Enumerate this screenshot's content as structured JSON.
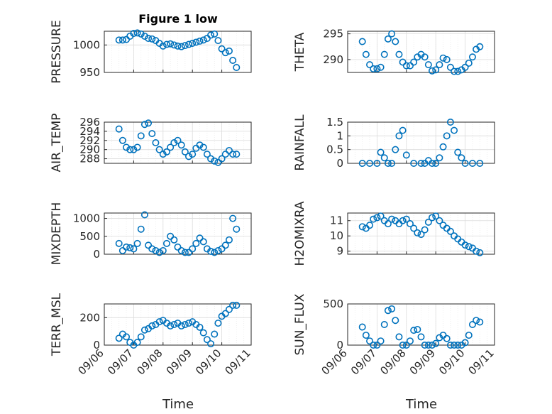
{
  "figure": {
    "title": "Figure 1 low",
    "xlabel": "Time"
  },
  "colors": {
    "marker": "#0072BD",
    "axis": "#262626",
    "grid_major": "#dcdcdc",
    "grid_minor": "#ebebeb"
  },
  "chart_data": [
    {
      "type": "scatter",
      "title": "Figure 1 low",
      "ylabel": "PRESSURE",
      "ylim": [
        950,
        1025
      ],
      "yticks": [
        950,
        1000
      ],
      "x": [
        "09/06 12:00",
        "09/06 15:00",
        "09/06 18:00",
        "09/06 21:00",
        "09/07 00:00",
        "09/07 03:00",
        "09/07 06:00",
        "09/07 09:00",
        "09/07 12:00",
        "09/07 15:00",
        "09/07 18:00",
        "09/07 21:00",
        "09/08 00:00",
        "09/08 03:00",
        "09/08 06:00",
        "09/08 09:00",
        "09/08 12:00",
        "09/08 15:00",
        "09/08 18:00",
        "09/08 21:00",
        "09/09 00:00",
        "09/09 03:00",
        "09/09 06:00",
        "09/09 09:00",
        "09/09 12:00",
        "09/09 15:00",
        "09/09 18:00",
        "09/09 21:00",
        "09/10 00:00",
        "09/10 03:00",
        "09/10 06:00",
        "09/10 09:00",
        "09/10 12:00"
      ],
      "y": [
        1009,
        1009,
        1010,
        1016,
        1021,
        1022,
        1020,
        1016,
        1012,
        1011,
        1008,
        1003,
        998,
        1001,
        1002,
        1000,
        998,
        997,
        999,
        1001,
        1003,
        1005,
        1007,
        1009,
        1012,
        1018,
        1020,
        1008,
        993,
        986,
        989,
        972,
        959
      ]
    },
    {
      "type": "scatter",
      "ylabel": "THETA",
      "ylim": [
        287.5,
        295.5
      ],
      "yticks": [
        290,
        295
      ],
      "x": [
        "09/06 12:00",
        "09/06 15:00",
        "09/06 18:00",
        "09/06 21:00",
        "09/07 00:00",
        "09/07 03:00",
        "09/07 06:00",
        "09/07 09:00",
        "09/07 12:00",
        "09/07 15:00",
        "09/07 18:00",
        "09/07 21:00",
        "09/08 00:00",
        "09/08 03:00",
        "09/08 06:00",
        "09/08 09:00",
        "09/08 12:00",
        "09/08 15:00",
        "09/08 18:00",
        "09/08 21:00",
        "09/09 00:00",
        "09/09 03:00",
        "09/09 06:00",
        "09/09 09:00",
        "09/09 12:00",
        "09/09 15:00",
        "09/09 18:00",
        "09/09 21:00",
        "09/10 00:00",
        "09/10 03:00",
        "09/10 06:00",
        "09/10 09:00",
        "09/10 12:00"
      ],
      "y": [
        293.5,
        291,
        289,
        288.2,
        288.2,
        288.5,
        291,
        294,
        295,
        293.5,
        291,
        289.5,
        288.8,
        288.8,
        289.5,
        290.5,
        291,
        290.5,
        289,
        287.8,
        288,
        289,
        290.3,
        290,
        288.5,
        287.7,
        287.7,
        288,
        288.5,
        289.3,
        290.5,
        292,
        292.5
      ]
    },
    {
      "type": "scatter",
      "ylabel": "AIR_TEMP",
      "ylim": [
        287,
        296
      ],
      "yticks": [
        288,
        290,
        292,
        294,
        296
      ],
      "x": [
        "09/06 12:00",
        "09/06 15:00",
        "09/06 18:00",
        "09/06 21:00",
        "09/07 00:00",
        "09/07 03:00",
        "09/07 06:00",
        "09/07 09:00",
        "09/07 12:00",
        "09/07 15:00",
        "09/07 18:00",
        "09/07 21:00",
        "09/08 00:00",
        "09/08 03:00",
        "09/08 06:00",
        "09/08 09:00",
        "09/08 12:00",
        "09/08 15:00",
        "09/08 18:00",
        "09/08 21:00",
        "09/09 00:00",
        "09/09 03:00",
        "09/09 06:00",
        "09/09 09:00",
        "09/09 12:00",
        "09/09 15:00",
        "09/09 18:00",
        "09/09 21:00",
        "09/10 00:00",
        "09/10 03:00",
        "09/10 06:00",
        "09/10 09:00",
        "09/10 12:00"
      ],
      "y": [
        294.5,
        292,
        290.5,
        290,
        290,
        290.5,
        293,
        295.5,
        295.8,
        293.5,
        291.5,
        290,
        289,
        289.5,
        290.5,
        291.5,
        292,
        291,
        289.5,
        288.5,
        289,
        290.3,
        291,
        290.5,
        289,
        288,
        287.5,
        287.2,
        288,
        289,
        289.8,
        289,
        289
      ]
    },
    {
      "type": "scatter",
      "ylabel": "RAINFALL",
      "ylim": [
        0,
        1.5
      ],
      "yticks": [
        0,
        0.5,
        1,
        1.5
      ],
      "x": [
        "09/06 12:00",
        "09/06 18:00",
        "09/07 00:00",
        "09/07 03:00",
        "09/07 06:00",
        "09/07 09:00",
        "09/07 12:00",
        "09/07 15:00",
        "09/07 18:00",
        "09/07 21:00",
        "09/08 00:00",
        "09/08 06:00",
        "09/08 12:00",
        "09/08 15:00",
        "09/08 18:00",
        "09/08 21:00",
        "09/09 00:00",
        "09/09 03:00",
        "09/09 06:00",
        "09/09 09:00",
        "09/09 12:00",
        "09/09 15:00",
        "09/09 18:00",
        "09/09 21:00",
        "09/10 00:00",
        "09/10 06:00",
        "09/10 12:00"
      ],
      "y": [
        0,
        0,
        0,
        0.4,
        0.2,
        0,
        0,
        0.5,
        1.0,
        1.2,
        0.3,
        0,
        0,
        0,
        0.1,
        0,
        0,
        0.2,
        0.6,
        1.0,
        1.5,
        1.2,
        0.4,
        0.2,
        0,
        0,
        0
      ]
    },
    {
      "type": "scatter",
      "ylabel": "MIXDEPTH",
      "ylim": [
        0,
        1150
      ],
      "yticks": [
        0,
        500,
        1000
      ],
      "x": [
        "09/06 12:00",
        "09/06 15:00",
        "09/06 18:00",
        "09/06 21:00",
        "09/07 00:00",
        "09/07 03:00",
        "09/07 06:00",
        "09/07 09:00",
        "09/07 12:00",
        "09/07 15:00",
        "09/07 18:00",
        "09/07 21:00",
        "09/08 00:00",
        "09/08 03:00",
        "09/08 06:00",
        "09/08 09:00",
        "09/08 12:00",
        "09/08 15:00",
        "09/08 18:00",
        "09/08 21:00",
        "09/09 00:00",
        "09/09 03:00",
        "09/09 06:00",
        "09/09 09:00",
        "09/09 12:00",
        "09/09 15:00",
        "09/09 18:00",
        "09/09 21:00",
        "09/10 00:00",
        "09/10 03:00",
        "09/10 06:00",
        "09/10 09:00",
        "09/10 12:00"
      ],
      "y": [
        300,
        100,
        200,
        180,
        150,
        300,
        700,
        1100,
        250,
        150,
        100,
        50,
        100,
        300,
        500,
        400,
        200,
        100,
        50,
        50,
        150,
        300,
        450,
        350,
        150,
        80,
        50,
        100,
        150,
        250,
        400,
        1000,
        700
      ]
    },
    {
      "type": "scatter",
      "ylabel": "H2OMIXRA",
      "ylim": [
        8.8,
        11.5
      ],
      "yticks": [
        9,
        10,
        11
      ],
      "x": [
        "09/06 12:00",
        "09/06 15:00",
        "09/06 18:00",
        "09/06 21:00",
        "09/07 00:00",
        "09/07 03:00",
        "09/07 06:00",
        "09/07 09:00",
        "09/07 12:00",
        "09/07 15:00",
        "09/07 18:00",
        "09/07 21:00",
        "09/08 00:00",
        "09/08 03:00",
        "09/08 06:00",
        "09/08 09:00",
        "09/08 12:00",
        "09/08 15:00",
        "09/08 18:00",
        "09/08 21:00",
        "09/09 00:00",
        "09/09 03:00",
        "09/09 06:00",
        "09/09 09:00",
        "09/09 12:00",
        "09/09 15:00",
        "09/09 18:00",
        "09/09 21:00",
        "09/10 00:00",
        "09/10 03:00",
        "09/10 06:00",
        "09/10 09:00",
        "09/10 12:00"
      ],
      "y": [
        10.6,
        10.5,
        10.7,
        11.1,
        11.2,
        11.3,
        11.0,
        10.8,
        11.1,
        11.0,
        10.8,
        11.0,
        11.1,
        10.8,
        10.5,
        10.2,
        10.1,
        10.4,
        10.9,
        11.2,
        11.3,
        11.0,
        10.7,
        10.5,
        10.3,
        10.0,
        9.8,
        9.6,
        9.4,
        9.3,
        9.2,
        9.0,
        8.9
      ]
    },
    {
      "type": "scatter",
      "ylabel": "TERR_MSL",
      "ylim": [
        0,
        300
      ],
      "yticks": [
        0,
        200
      ],
      "x": [
        "09/06 12:00",
        "09/06 15:00",
        "09/06 18:00",
        "09/06 21:00",
        "09/07 00:00",
        "09/07 03:00",
        "09/07 06:00",
        "09/07 09:00",
        "09/07 12:00",
        "09/07 15:00",
        "09/07 18:00",
        "09/07 21:00",
        "09/08 00:00",
        "09/08 03:00",
        "09/08 06:00",
        "09/08 09:00",
        "09/08 12:00",
        "09/08 15:00",
        "09/08 18:00",
        "09/08 21:00",
        "09/09 00:00",
        "09/09 03:00",
        "09/09 06:00",
        "09/09 09:00",
        "09/09 12:00",
        "09/09 15:00",
        "09/09 18:00",
        "09/09 21:00",
        "09/10 00:00",
        "09/10 03:00",
        "09/10 06:00",
        "09/10 09:00",
        "09/10 12:00"
      ],
      "y": [
        50,
        80,
        60,
        20,
        0,
        20,
        60,
        110,
        120,
        140,
        150,
        170,
        180,
        160,
        140,
        150,
        160,
        140,
        150,
        160,
        170,
        150,
        130,
        90,
        40,
        10,
        80,
        160,
        210,
        230,
        260,
        290,
        290
      ]
    },
    {
      "type": "scatter",
      "ylabel": "SUN_FLUX",
      "ylim": [
        0,
        500
      ],
      "yticks": [
        0,
        500
      ],
      "x": [
        "09/06 12:00",
        "09/06 15:00",
        "09/06 18:00",
        "09/06 21:00",
        "09/07 00:00",
        "09/07 03:00",
        "09/07 06:00",
        "09/07 09:00",
        "09/07 12:00",
        "09/07 15:00",
        "09/07 18:00",
        "09/07 21:00",
        "09/08 00:00",
        "09/08 03:00",
        "09/08 06:00",
        "09/08 09:00",
        "09/08 12:00",
        "09/08 15:00",
        "09/08 18:00",
        "09/08 21:00",
        "09/09 00:00",
        "09/09 03:00",
        "09/09 06:00",
        "09/09 09:00",
        "09/09 12:00",
        "09/09 15:00",
        "09/09 18:00",
        "09/09 21:00",
        "09/10 00:00",
        "09/10 03:00",
        "09/10 06:00",
        "09/10 09:00",
        "09/10 12:00"
      ],
      "y": [
        220,
        120,
        50,
        0,
        0,
        50,
        250,
        420,
        440,
        300,
        100,
        0,
        0,
        50,
        180,
        190,
        100,
        0,
        0,
        0,
        20,
        90,
        120,
        80,
        0,
        0,
        0,
        0,
        30,
        120,
        250,
        300,
        280
      ]
    }
  ],
  "xaxis": {
    "xlim": [
      "09/06 00:00",
      "09/11 00:00"
    ],
    "tick_values": [
      "09/06 00:00",
      "09/07 00:00",
      "09/08 00:00",
      "09/09 00:00",
      "09/10 00:00",
      "09/11 00:00"
    ],
    "tick_labels": [
      "09/06",
      "09/07",
      "09/08",
      "09/09",
      "09/10",
      "09/11"
    ]
  }
}
